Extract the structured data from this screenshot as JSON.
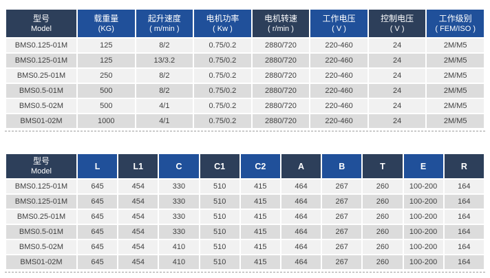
{
  "colors": {
    "header_dark": "#2d3f5a",
    "header_blue": "#20509a",
    "header_text": "#ffffff",
    "row_light": "#f1f1f1",
    "row_gray": "#dcdcdc",
    "body_text": "#3f3f3f"
  },
  "spec_table": {
    "columns": [
      {
        "line1": "型号",
        "line2": "Model",
        "tone": "dark"
      },
      {
        "line1": "载重量",
        "line2": "(KG)",
        "tone": "blue"
      },
      {
        "line1": "起升速度",
        "line2": "( m/min )",
        "tone": "blue"
      },
      {
        "line1": "电机功率",
        "line2": "( Kw )",
        "tone": "blue"
      },
      {
        "line1": "电机转速",
        "line2": "( r/min )",
        "tone": "dark"
      },
      {
        "line1": "工作电压",
        "line2": "( V )",
        "tone": "blue"
      },
      {
        "line1": "控制电压",
        "line2": "( V )",
        "tone": "dark"
      },
      {
        "line1": "工作级别",
        "line2": "( FEM/ISO )",
        "tone": "blue"
      }
    ],
    "rows": [
      [
        "BMS0.125-01M",
        "125",
        "8/2",
        "0.75/0.2",
        "2880/720",
        "220-460",
        "24",
        "2M/M5"
      ],
      [
        "BMS0.125-01M",
        "125",
        "13/3.2",
        "0.75/0.2",
        "2880/720",
        "220-460",
        "24",
        "2M/M5"
      ],
      [
        "BMS0.25-01M",
        "250",
        "8/2",
        "0.75/0.2",
        "2880/720",
        "220-460",
        "24",
        "2M/M5"
      ],
      [
        "BMS0.5-01M",
        "500",
        "8/2",
        "0.75/0.2",
        "2880/720",
        "220-460",
        "24",
        "2M/M5"
      ],
      [
        "BMS0.5-02M",
        "500",
        "4/1",
        "0.75/0.2",
        "2880/720",
        "220-460",
        "24",
        "2M/M5"
      ],
      [
        "BMS01-02M",
        "1000",
        "4/1",
        "0.75/0.2",
        "2880/720",
        "220-460",
        "24",
        "2M/M5"
      ]
    ]
  },
  "dimension_table": {
    "columns": [
      {
        "line1": "型号",
        "line2": "Model",
        "tone": "dark"
      },
      {
        "line1": "L",
        "tone": "blue"
      },
      {
        "line1": "L1",
        "tone": "dark"
      },
      {
        "line1": "C",
        "tone": "blue"
      },
      {
        "line1": "C1",
        "tone": "dark"
      },
      {
        "line1": "C2",
        "tone": "blue"
      },
      {
        "line1": "A",
        "tone": "dark"
      },
      {
        "line1": "B",
        "tone": "blue"
      },
      {
        "line1": "T",
        "tone": "dark"
      },
      {
        "line1": "E",
        "tone": "blue"
      },
      {
        "line1": "R",
        "tone": "dark"
      }
    ],
    "rows": [
      [
        "BMS0.125-01M",
        "645",
        "454",
        "330",
        "510",
        "415",
        "464",
        "267",
        "260",
        "100-200",
        "164"
      ],
      [
        "BMS0.125-01M",
        "645",
        "454",
        "330",
        "510",
        "415",
        "464",
        "267",
        "260",
        "100-200",
        "164"
      ],
      [
        "BMS0.25-01M",
        "645",
        "454",
        "330",
        "510",
        "415",
        "464",
        "267",
        "260",
        "100-200",
        "164"
      ],
      [
        "BMS0.5-01M",
        "645",
        "454",
        "330",
        "510",
        "415",
        "464",
        "267",
        "260",
        "100-200",
        "164"
      ],
      [
        "BMS0.5-02M",
        "645",
        "454",
        "410",
        "510",
        "415",
        "464",
        "267",
        "260",
        "100-200",
        "164"
      ],
      [
        "BMS01-02M",
        "645",
        "454",
        "410",
        "510",
        "415",
        "464",
        "267",
        "260",
        "100-200",
        "164"
      ]
    ]
  }
}
